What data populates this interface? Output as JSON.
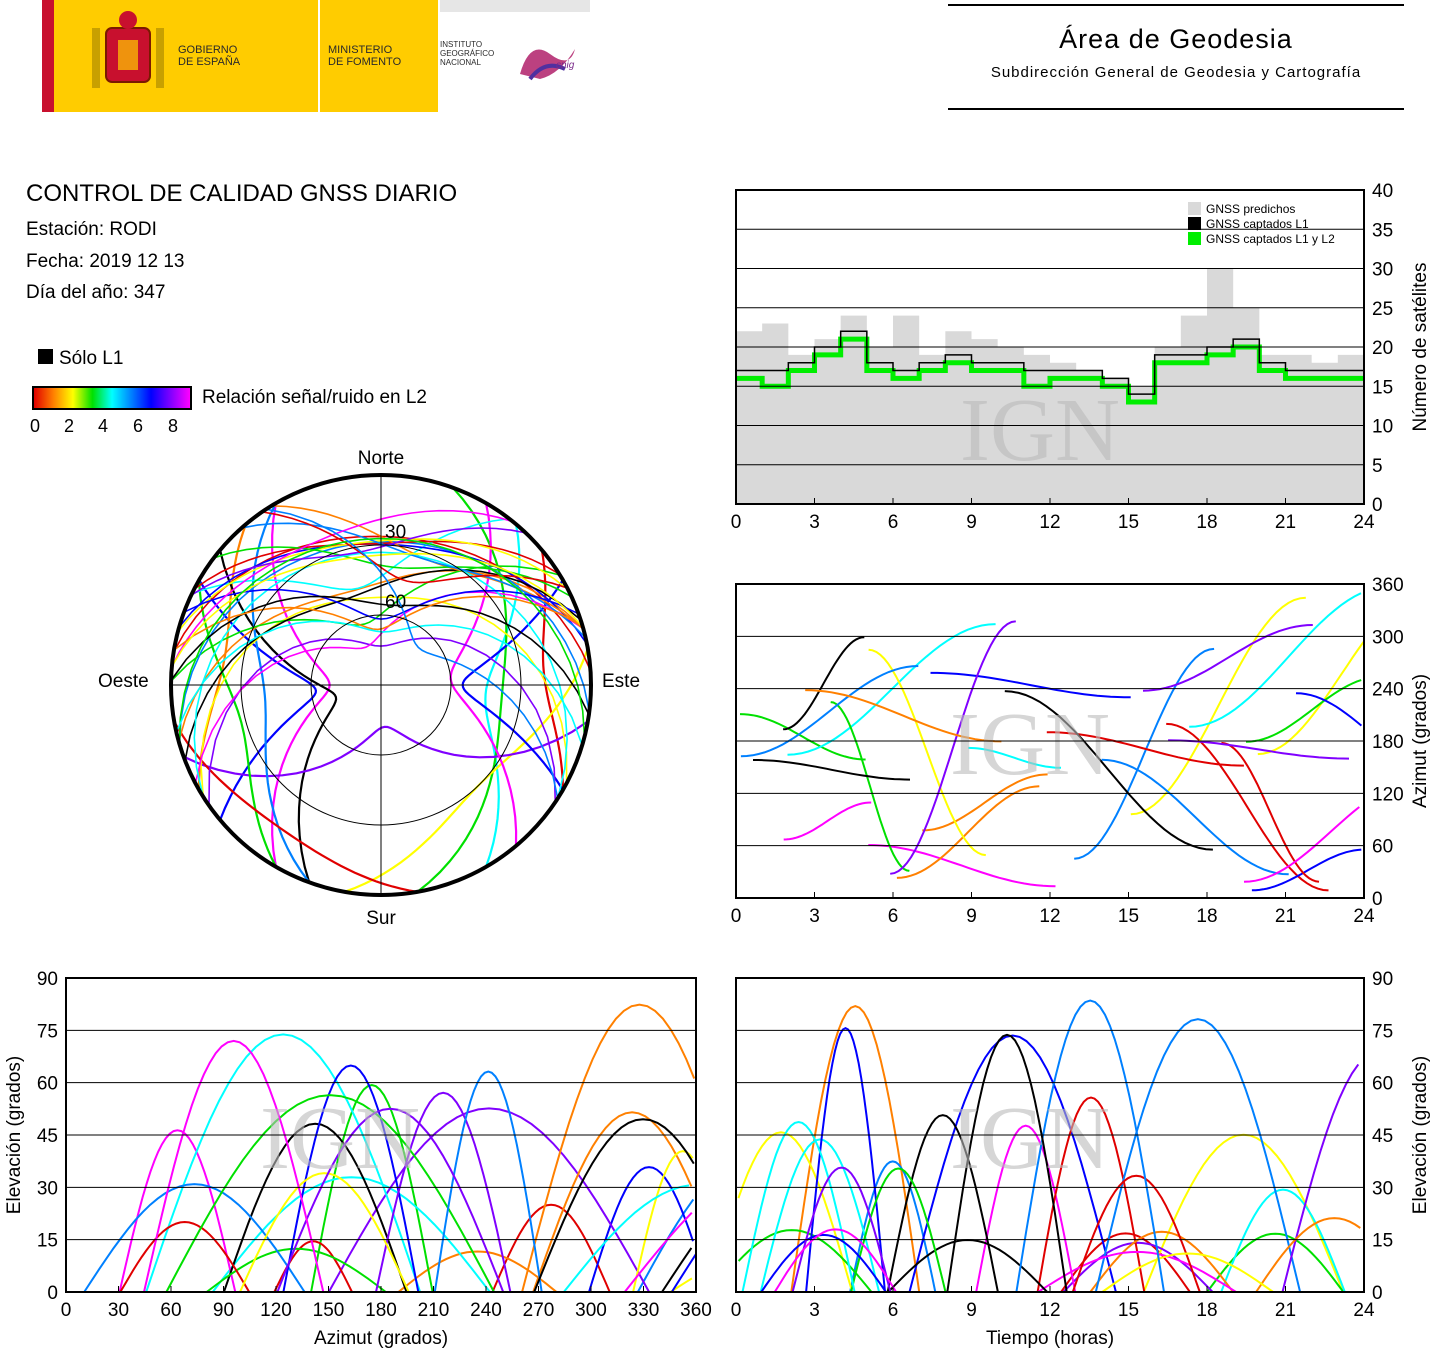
{
  "header": {
    "logo_gobierno": "GOBIERNO\nDE ESPAÑA",
    "logo_ministerio": "MINISTERIO\nDE FOMENTO",
    "logo_instituto": "INSTITUTO\nGEOGRÁFICO\nNACIONAL",
    "logo_cnig": "cnig",
    "area_title": "Área de Geodesia",
    "area_subtitle": "Subdirección General de Geodesia y Cartografía"
  },
  "info": {
    "title": "CONTROL DE CALIDAD GNSS DIARIO",
    "station": "Estación: RODI",
    "date": "Fecha: 2019 12 13",
    "doy": "Día del año: 347",
    "legend_l1": "Sólo L1",
    "legend_snr": "Relación señal/ruido en L2",
    "cb_ticks": [
      "0",
      "2",
      "4",
      "6",
      "8"
    ]
  },
  "colors": {
    "snr_scale": [
      "#e00000",
      "#ff8000",
      "#ffff00",
      "#00e000",
      "#00ffff",
      "#0080ff",
      "#0000ff",
      "#8000ff",
      "#ff00ff"
    ],
    "predicted": "#d9d9d9",
    "l1": "#000000",
    "l1l2": "#00ee00"
  },
  "watermark": "IGN",
  "chart_data": [
    {
      "type": "polar",
      "id": "skyplot",
      "labels": {
        "north": "Norte",
        "south": "Sur",
        "east": "Este",
        "west": "Oeste"
      },
      "rings": [
        "30",
        "60"
      ],
      "tracks": [
        {
          "c": "#ff00ff",
          "az0": 330,
          "az1": 210,
          "peak": 68
        },
        {
          "c": "#0000ff",
          "az0": 300,
          "az1": 230,
          "peak": 62
        },
        {
          "c": "#00ffff",
          "az0": 40,
          "az1": 150,
          "peak": 45
        },
        {
          "c": "#00e000",
          "az0": 20,
          "az1": 170,
          "peak": 38
        },
        {
          "c": "#e00000",
          "az0": 50,
          "az1": 120,
          "peak": 20
        },
        {
          "c": "#ff8000",
          "az0": 240,
          "az1": 320,
          "peak": 22
        },
        {
          "c": "#000000",
          "az0": 310,
          "az1": 200,
          "peak": 70
        },
        {
          "c": "#ffff00",
          "az0": 80,
          "az1": 190,
          "peak": 30
        },
        {
          "c": "#8000ff",
          "az0": 100,
          "az1": 250,
          "peak": 72
        },
        {
          "c": "#0080ff",
          "az0": 200,
          "az1": 330,
          "peak": 40
        },
        {
          "c": "#ff00ff",
          "az0": 140,
          "az1": 30,
          "peak": 60
        },
        {
          "c": "#00e000",
          "az0": 210,
          "az1": 300,
          "peak": 28
        },
        {
          "c": "#e00000",
          "az0": 170,
          "az1": 260,
          "peak": 15
        },
        {
          "c": "#0000ff",
          "az0": 120,
          "az1": 60,
          "peak": 55
        }
      ]
    },
    {
      "type": "area",
      "id": "sat-count",
      "x_ticks": [
        "0",
        "3",
        "6",
        "9",
        "12",
        "15",
        "18",
        "21",
        "24"
      ],
      "y_ticks": [
        "0",
        "5",
        "10",
        "15",
        "20",
        "25",
        "30",
        "35",
        "40"
      ],
      "ylabel": "Número de satélites",
      "xlim": [
        0,
        24
      ],
      "ylim": [
        0,
        40
      ],
      "legend": [
        "GNSS predichos",
        "GNSS captados L1",
        "GNSS captados L1 y L2"
      ],
      "x": [
        0,
        1,
        2,
        3,
        4,
        5,
        6,
        7,
        8,
        9,
        10,
        11,
        12,
        13,
        14,
        15,
        16,
        17,
        18,
        19,
        20,
        21,
        22,
        23,
        24
      ],
      "predicted": [
        22,
        23,
        19,
        21,
        24,
        20,
        24,
        19,
        22,
        21,
        20,
        19,
        18,
        17,
        16,
        15,
        20,
        24,
        30,
        25,
        19,
        19,
        18,
        19,
        19
      ],
      "l1": [
        17,
        17,
        18,
        20,
        22,
        18,
        17,
        18,
        19,
        18,
        18,
        17,
        17,
        17,
        16,
        14,
        19,
        19,
        20,
        21,
        18,
        17,
        17,
        17,
        17
      ],
      "l1l2": [
        16,
        15,
        17,
        19,
        21,
        17,
        16,
        17,
        18,
        17,
        17,
        15,
        16,
        16,
        15,
        13,
        18,
        18,
        19,
        20,
        17,
        16,
        16,
        16,
        16
      ]
    },
    {
      "type": "scatter",
      "id": "azimuth-time",
      "x_ticks": [
        "0",
        "3",
        "6",
        "9",
        "12",
        "15",
        "18",
        "21",
        "24"
      ],
      "y_ticks": [
        "0",
        "60",
        "120",
        "180",
        "240",
        "300",
        "360"
      ],
      "ylabel": "Azimut (grados)",
      "xlim": [
        0,
        24
      ],
      "ylim": [
        0,
        360
      ],
      "series_count": 30
    },
    {
      "type": "scatter",
      "id": "elev-azimuth",
      "x_ticks": [
        "0",
        "30",
        "60",
        "90",
        "120",
        "150",
        "180",
        "210",
        "240",
        "270",
        "300",
        "330",
        "360"
      ],
      "y_ticks": [
        "0",
        "15",
        "30",
        "45",
        "60",
        "75",
        "90"
      ],
      "xlabel": "Azimut (grados)",
      "ylabel": "Elevación (grados)",
      "xlim": [
        0,
        360
      ],
      "ylim": [
        0,
        90
      ],
      "series_count": 30
    },
    {
      "type": "scatter",
      "id": "elev-time",
      "x_ticks": [
        "0",
        "3",
        "6",
        "9",
        "12",
        "15",
        "18",
        "21",
        "24"
      ],
      "y_ticks": [
        "0",
        "15",
        "30",
        "45",
        "60",
        "75",
        "90"
      ],
      "xlabel": "Tiempo (horas)",
      "ylabel": "Elevación (grados)",
      "xlim": [
        0,
        24
      ],
      "ylim": [
        0,
        90
      ],
      "series_count": 30
    }
  ]
}
